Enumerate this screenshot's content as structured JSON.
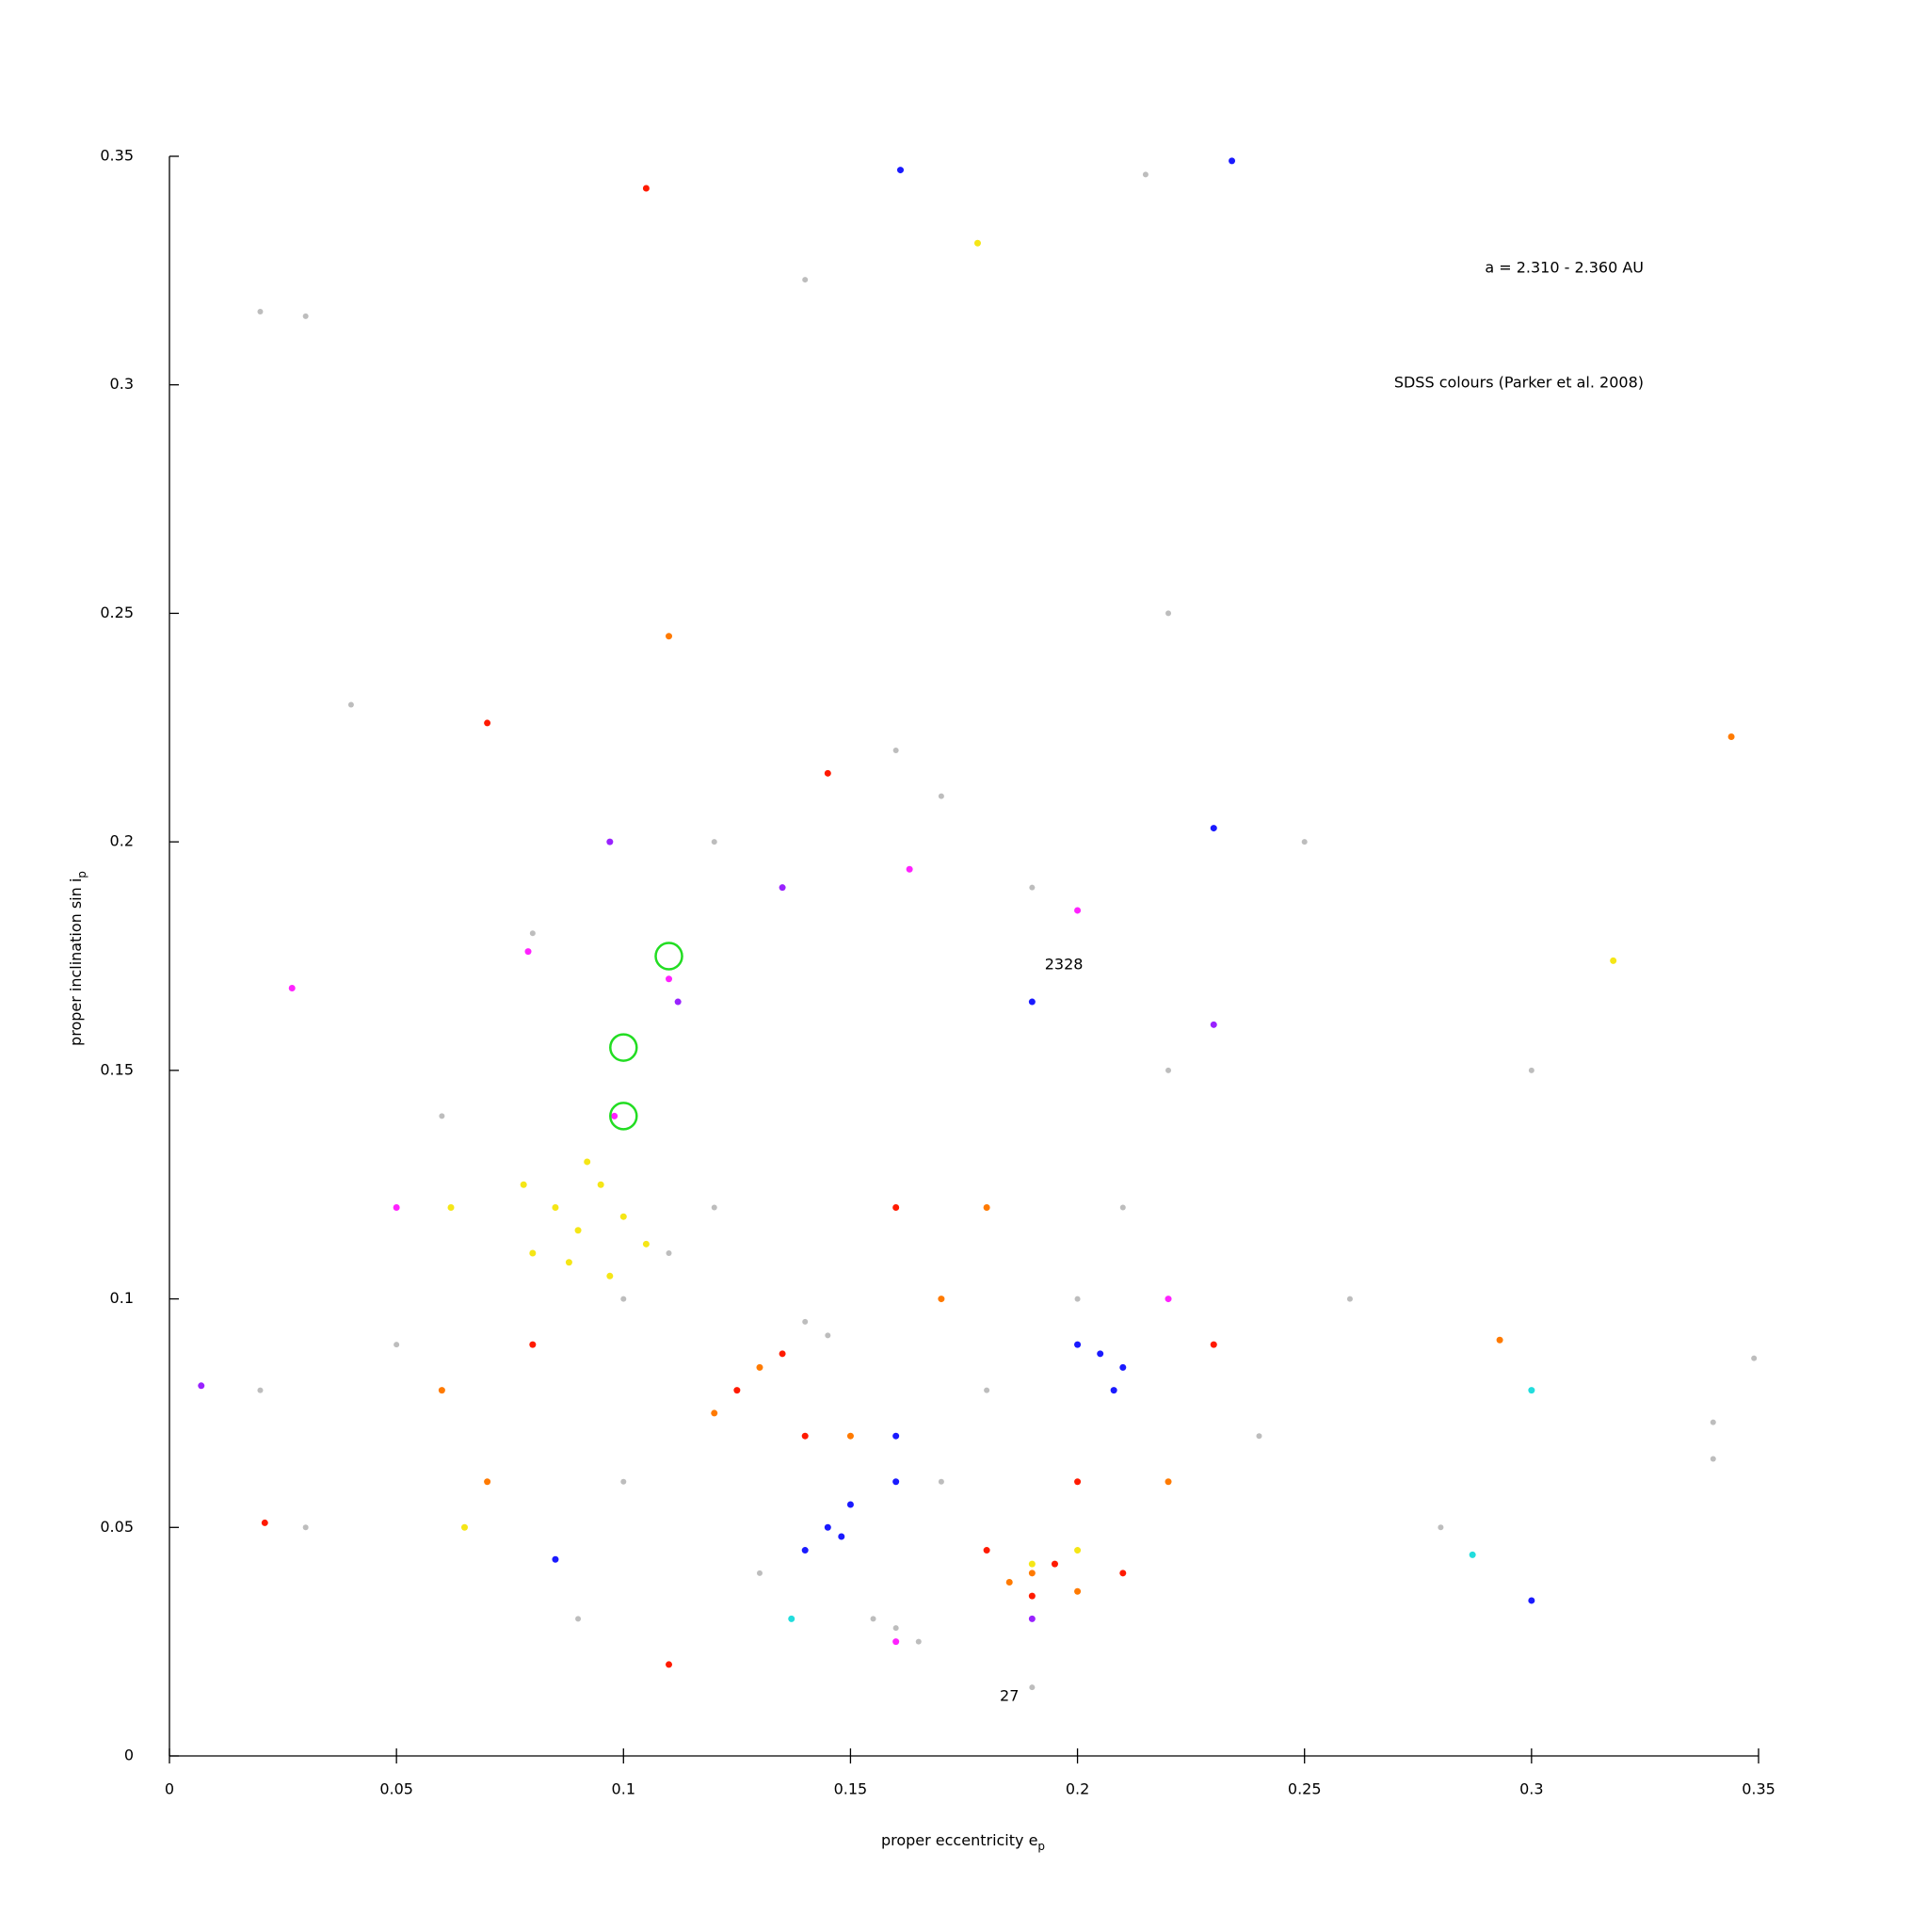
{
  "chart_data": {
    "type": "scatter",
    "xlabel": "proper eccentricity e",
    "xlabel_sub": "p",
    "ylabel": "proper inclination sin i",
    "ylabel_sub": "p",
    "range_note": "a = 2.310 - 2.360 AU",
    "source_note": "SDSS colours (Parker et al. 2008)",
    "xlim": [
      0,
      0.35
    ],
    "ylim": [
      0,
      0.35
    ],
    "xticks": [
      0,
      0.05,
      0.1,
      0.15,
      0.2,
      0.25,
      0.3,
      0.35
    ],
    "yticks": [
      0,
      0.05,
      0.1,
      0.15,
      0.2,
      0.25,
      0.3,
      0.35
    ],
    "series": [
      {
        "color": "#bdbdbd",
        "x": [
          0.02,
          0.03,
          0.14,
          0.215,
          0.16,
          0.17,
          0.19,
          0.12,
          0.08,
          0.06,
          0.05,
          0.1,
          0.11,
          0.12,
          0.14,
          0.145,
          0.16,
          0.165,
          0.155,
          0.17,
          0.18,
          0.2,
          0.21,
          0.22,
          0.24,
          0.26,
          0.28,
          0.3,
          0.34,
          0.34,
          0.349,
          0.03,
          0.02,
          0.09,
          0.13,
          0.19,
          0.25,
          0.22,
          0.04,
          0.1
        ],
        "values": [
          0.316,
          0.315,
          0.323,
          0.346,
          0.22,
          0.21,
          0.19,
          0.2,
          0.18,
          0.14,
          0.09,
          0.1,
          0.11,
          0.12,
          0.095,
          0.092,
          0.028,
          0.025,
          0.03,
          0.06,
          0.08,
          0.1,
          0.12,
          0.15,
          0.07,
          0.1,
          0.05,
          0.15,
          0.073,
          0.065,
          0.087,
          0.05,
          0.08,
          0.03,
          0.04,
          0.015,
          0.2,
          0.25,
          0.23,
          0.06
        ]
      },
      {
        "color": "#f5e616",
        "x": [
          0.085,
          0.09,
          0.095,
          0.08,
          0.1,
          0.092,
          0.088,
          0.105,
          0.078,
          0.097,
          0.19,
          0.2,
          0.062,
          0.178,
          0.318,
          0.065
        ],
        "values": [
          0.12,
          0.115,
          0.125,
          0.11,
          0.118,
          0.13,
          0.108,
          0.112,
          0.125,
          0.105,
          0.042,
          0.045,
          0.12,
          0.331,
          0.174,
          0.05
        ]
      },
      {
        "color": "#ff7a00",
        "x": [
          0.19,
          0.185,
          0.2,
          0.13,
          0.12,
          0.11,
          0.15,
          0.17,
          0.22,
          0.07,
          0.293,
          0.344,
          0.06,
          0.18
        ],
        "values": [
          0.04,
          0.038,
          0.036,
          0.085,
          0.075,
          0.245,
          0.07,
          0.1,
          0.06,
          0.06,
          0.091,
          0.223,
          0.08,
          0.12
        ]
      },
      {
        "color": "#ff1a00",
        "x": [
          0.105,
          0.195,
          0.19,
          0.18,
          0.21,
          0.125,
          0.14,
          0.135,
          0.145,
          0.07,
          0.021,
          0.16,
          0.23,
          0.08,
          0.2,
          0.11
        ],
        "values": [
          0.343,
          0.042,
          0.035,
          0.045,
          0.04,
          0.08,
          0.07,
          0.088,
          0.215,
          0.226,
          0.051,
          0.12,
          0.09,
          0.09,
          0.06,
          0.02
        ]
      },
      {
        "color": "#1a1aff",
        "x": [
          0.145,
          0.14,
          0.15,
          0.148,
          0.205,
          0.21,
          0.2,
          0.208,
          0.16,
          0.234,
          0.161,
          0.23,
          0.3,
          0.085,
          0.19,
          0.16
        ],
        "values": [
          0.05,
          0.045,
          0.055,
          0.048,
          0.088,
          0.085,
          0.09,
          0.08,
          0.06,
          0.349,
          0.347,
          0.203,
          0.034,
          0.043,
          0.165,
          0.07
        ]
      },
      {
        "color": "#ff22ff",
        "x": [
          0.027,
          0.079,
          0.163,
          0.098,
          0.11,
          0.16,
          0.2,
          0.05,
          0.22
        ],
        "values": [
          0.168,
          0.176,
          0.194,
          0.14,
          0.17,
          0.025,
          0.185,
          0.12,
          0.1
        ]
      },
      {
        "color": "#9922ff",
        "x": [
          0.135,
          0.097,
          0.112,
          0.19,
          0.007,
          0.23
        ],
        "values": [
          0.19,
          0.2,
          0.165,
          0.03,
          0.081,
          0.16
        ]
      },
      {
        "color": "#22dddd",
        "x": [
          0.287,
          0.137,
          0.3
        ],
        "values": [
          0.044,
          0.03,
          0.08
        ]
      }
    ],
    "circles": {
      "color": "#22dd22",
      "x": [
        0.11,
        0.1,
        0.1
      ],
      "values": [
        0.175,
        0.155,
        0.14
      ]
    },
    "annotations": [
      {
        "text": "2328",
        "x": 0.197,
        "y": 0.173
      },
      {
        "text": "27",
        "x": 0.185,
        "y": 0.013
      }
    ]
  }
}
